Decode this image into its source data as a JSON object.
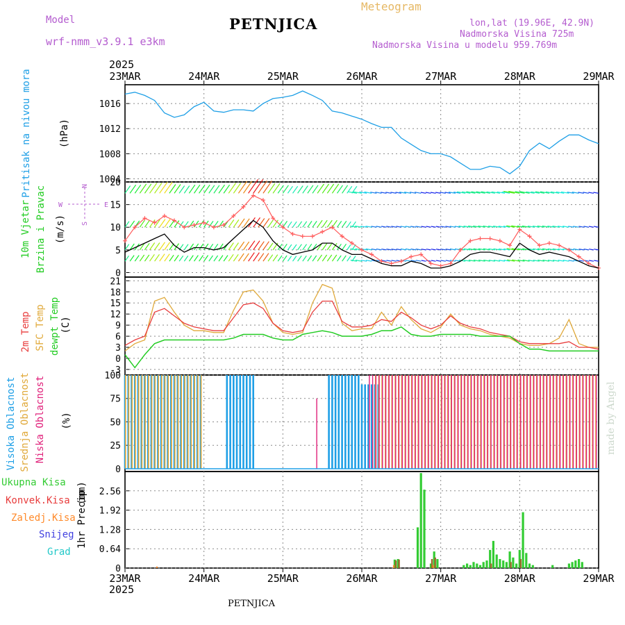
{
  "header": {
    "model_label": "Model",
    "model_name": "wrf-nmm_v3.9.1  e3km",
    "title": "PETNJICA",
    "meteogram": "Meteogram",
    "lonlat": "lon,lat (19.96E, 42.9N)",
    "altitude": "Nadmorska Visina 725m",
    "model_altitude": "Nadmorska Visina u modelu 959.769m",
    "footer": "PETNJICA",
    "credit": "made by Angel",
    "year": "2025"
  },
  "colors": {
    "pressure": "#1e9fe6",
    "wind_speed": "#000000",
    "gust": "#ff5a5a",
    "temp2m": "#e83c3c",
    "sfc_temp": "#e0a93a",
    "dewpt": "#22cc22",
    "high_cloud": "#1e9fe6",
    "mid_cloud": "#e0a93a",
    "low_cloud": "#e0207a",
    "total_precip": "#33cc33",
    "conv_precip": "#e83c3c",
    "frozen_precip": "#ff8a2a",
    "snow": "#4040e0",
    "hail": "#22c8c8",
    "header_purple": "#b45ccf",
    "header_gold": "#e6b864"
  },
  "chart_data": [
    {
      "type": "line",
      "name": "pressure",
      "x_ticks": [
        "23MAR",
        "24MAR",
        "25MAR",
        "26MAR",
        "27MAR",
        "28MAR",
        "29MAR"
      ],
      "ylabel_1": "Pritisak na nivou mora",
      "ylabel_2": "(hPa)",
      "y_tick_labels": [
        "1004",
        "1008",
        "1012",
        "1016"
      ],
      "ylim": [
        1003.5,
        1019
      ],
      "x_hours": [
        0,
        3,
        6,
        9,
        12,
        15,
        18,
        21,
        24,
        27,
        30,
        33,
        36,
        39,
        42,
        45,
        48,
        51,
        54,
        57,
        60,
        63,
        66,
        69,
        72,
        75,
        78,
        81,
        84,
        87,
        90,
        93,
        96,
        99,
        102,
        105,
        108,
        111,
        114,
        117,
        120,
        123,
        126,
        129,
        132,
        135,
        138,
        141,
        144
      ],
      "values": [
        1017.5,
        1017.8,
        1017.3,
        1016.5,
        1014.5,
        1013.8,
        1014.2,
        1015.5,
        1016.2,
        1014.8,
        1014.6,
        1015.0,
        1015.0,
        1014.8,
        1016.0,
        1016.8,
        1017.0,
        1017.3,
        1018.0,
        1017.3,
        1016.5,
        1014.8,
        1014.5,
        1014.0,
        1013.5,
        1012.8,
        1012.2,
        1012.2,
        1010.5,
        1009.5,
        1008.5,
        1008.0,
        1008.0,
        1007.5,
        1006.5,
        1005.5,
        1005.5,
        1006.0,
        1005.8,
        1004.8,
        1006.0,
        1008.5,
        1009.7,
        1008.8,
        1010.0,
        1011.0,
        1011.0,
        1010.2,
        1009.6
      ]
    },
    {
      "type": "line",
      "name": "wind",
      "ylabel_1": "10m Vjetar",
      "ylabel_2": "Brzina i Pravac",
      "ylabel_3": "(m/s)",
      "compass": {
        "north": "N",
        "south": "S",
        "east": "E",
        "west": "W"
      },
      "y_tick_labels": [
        "0",
        "5",
        "10",
        "15",
        "20"
      ],
      "ylim": [
        -1,
        20
      ],
      "x_hours": [
        0,
        3,
        6,
        9,
        12,
        15,
        18,
        21,
        24,
        27,
        30,
        33,
        36,
        39,
        42,
        45,
        48,
        51,
        54,
        57,
        60,
        63,
        66,
        69,
        72,
        75,
        78,
        81,
        84,
        87,
        90,
        93,
        96,
        99,
        102,
        105,
        108,
        111,
        114,
        117,
        120,
        123,
        126,
        129,
        132,
        135,
        138,
        141,
        144
      ],
      "speed": [
        4.5,
        5.5,
        6.5,
        7.5,
        8.5,
        6.0,
        4.5,
        5.5,
        5.5,
        5.0,
        5.5,
        7.5,
        9.5,
        11.5,
        10.0,
        7.0,
        5.0,
        4.0,
        4.5,
        5.0,
        6.5,
        6.5,
        5.0,
        4.0,
        4.0,
        3.0,
        2.0,
        1.5,
        1.5,
        2.5,
        2.0,
        1.0,
        1.0,
        1.5,
        2.5,
        4.0,
        4.5,
        4.5,
        4.0,
        3.5,
        6.5,
        5.0,
        4.0,
        4.5,
        4.0,
        3.5,
        2.5,
        1.5,
        1.0
      ],
      "gust": [
        7.0,
        10.0,
        12.0,
        11.0,
        12.5,
        11.5,
        10.0,
        10.5,
        11.0,
        10.0,
        10.5,
        12.5,
        14.5,
        17.0,
        16.0,
        12.0,
        10.0,
        8.5,
        8.0,
        8.0,
        9.0,
        10.0,
        8.0,
        6.5,
        5.0,
        4.0,
        2.5,
        2.0,
        2.5,
        3.5,
        4.0,
        2.0,
        1.5,
        2.0,
        5.0,
        7.0,
        7.5,
        7.5,
        7.0,
        6.0,
        9.5,
        8.0,
        6.0,
        6.5,
        6.0,
        5.0,
        3.5,
        2.0,
        1.0
      ]
    },
    {
      "type": "line",
      "name": "temperature",
      "ylabel_1": "2m Temp",
      "ylabel_2": "SFC Temp",
      "ylabel_3": "dewpt Temp",
      "ylabel_4": "(C)",
      "y_tick_labels": [
        "-3",
        "0",
        "3",
        "6",
        "9",
        "12",
        "15",
        "18",
        "21"
      ],
      "ylim": [
        -4.5,
        22
      ],
      "x_hours": [
        0,
        3,
        6,
        9,
        12,
        15,
        18,
        21,
        24,
        27,
        30,
        33,
        36,
        39,
        42,
        45,
        48,
        51,
        54,
        57,
        60,
        63,
        66,
        69,
        72,
        75,
        78,
        81,
        84,
        87,
        90,
        93,
        96,
        99,
        102,
        105,
        108,
        111,
        114,
        117,
        120,
        123,
        126,
        129,
        132,
        135,
        138,
        141,
        144
      ],
      "temp2m": [
        3.5,
        5.0,
        6.0,
        12.5,
        13.5,
        11.5,
        9.5,
        8.5,
        8.0,
        7.5,
        7.5,
        11.0,
        14.5,
        15.0,
        13.5,
        9.5,
        7.5,
        7.0,
        7.5,
        12.5,
        15.5,
        15.5,
        10.0,
        8.5,
        8.5,
        9.0,
        10.5,
        10.0,
        12.5,
        11.0,
        9.0,
        8.0,
        9.0,
        11.5,
        9.5,
        8.5,
        8.0,
        7.0,
        6.5,
        6.0,
        4.5,
        4.0,
        4.0,
        4.0,
        4.0,
        4.5,
        3.0,
        3.0,
        2.5
      ],
      "sfc_temp": [
        2.0,
        4.0,
        5.0,
        15.5,
        16.5,
        12.5,
        9.0,
        7.5,
        7.5,
        7.0,
        7.0,
        13.0,
        18.0,
        18.5,
        15.5,
        9.5,
        7.0,
        6.5,
        7.0,
        15.0,
        20.0,
        19.0,
        9.5,
        7.5,
        8.0,
        8.0,
        12.5,
        9.0,
        14.0,
        10.5,
        8.0,
        7.0,
        8.5,
        12.0,
        9.0,
        8.0,
        7.5,
        6.5,
        6.0,
        5.5,
        4.0,
        3.5,
        3.5,
        4.0,
        5.5,
        10.5,
        4.0,
        3.0,
        3.0
      ],
      "dewpt": [
        1.0,
        -2.5,
        1.0,
        4.0,
        5.0,
        5.0,
        5.0,
        5.0,
        5.0,
        5.0,
        5.0,
        5.5,
        6.5,
        6.5,
        6.5,
        5.5,
        5.0,
        5.0,
        6.5,
        7.0,
        7.5,
        7.0,
        6.0,
        6.0,
        6.0,
        6.5,
        7.5,
        7.5,
        8.5,
        6.5,
        6.0,
        6.0,
        6.5,
        6.5,
        6.5,
        6.5,
        6.0,
        6.0,
        6.0,
        6.0,
        4.0,
        2.5,
        2.5,
        2.0,
        2.0,
        2.0,
        2.0,
        2.0,
        2.0
      ]
    },
    {
      "type": "bar",
      "name": "cloud_cover",
      "ylabel_1": "Visoka Oblacnost",
      "ylabel_2": "Srednja Oblacnost",
      "ylabel_3": "Niska Oblacnost",
      "ylabel_4": "(%)",
      "y_tick_labels": [
        "0",
        "25",
        "50",
        "75",
        "100"
      ],
      "ylim": [
        -3,
        100
      ],
      "series": [
        {
          "name": "high",
          "segments": [
            [
              0,
              24,
              100
            ],
            [
              31,
              40,
              100
            ],
            [
              62,
              72,
              100
            ],
            [
              72,
              78,
              90
            ]
          ]
        },
        {
          "name": "mid",
          "segments": [
            [
              0,
              24,
              100
            ],
            [
              76,
              144,
              100
            ]
          ]
        },
        {
          "name": "low",
          "segments": [
            [
              58,
              59,
              75
            ],
            [
              74,
              144,
              100
            ]
          ]
        }
      ]
    },
    {
      "type": "bar",
      "name": "precipitation",
      "ylabel_1": "1hr Precip",
      "ylabel_2": "(mm)",
      "legend": [
        "Ukupna Kisa",
        "Konvek.Kisa",
        "Zaledj.Kisa",
        "Snijeg",
        "Grad"
      ],
      "y_tick_labels": [
        "0",
        "0.64",
        "1.28",
        "1.92",
        "2.56"
      ],
      "ylim": [
        0,
        3.2
      ],
      "total": [
        [
          82,
          0.28
        ],
        [
          83,
          0.3
        ],
        [
          89,
          1.35
        ],
        [
          90,
          3.15
        ],
        [
          91,
          2.6
        ],
        [
          93,
          0.15
        ],
        [
          94,
          0.55
        ],
        [
          95,
          0.3
        ],
        [
          103,
          0.1
        ],
        [
          104,
          0.15
        ],
        [
          105,
          0.1
        ],
        [
          106,
          0.2
        ],
        [
          107,
          0.15
        ],
        [
          108,
          0.1
        ],
        [
          109,
          0.2
        ],
        [
          110,
          0.25
        ],
        [
          111,
          0.6
        ],
        [
          112,
          0.9
        ],
        [
          113,
          0.45
        ],
        [
          114,
          0.3
        ],
        [
          115,
          0.25
        ],
        [
          116,
          0.2
        ],
        [
          117,
          0.55
        ],
        [
          118,
          0.35
        ],
        [
          119,
          0.15
        ],
        [
          120,
          0.6
        ],
        [
          121,
          1.85
        ],
        [
          122,
          0.5
        ],
        [
          123,
          0.15
        ],
        [
          124,
          0.1
        ],
        [
          130,
          0.1
        ],
        [
          135,
          0.15
        ],
        [
          136,
          0.2
        ],
        [
          137,
          0.25
        ],
        [
          138,
          0.3
        ],
        [
          139,
          0.2
        ]
      ],
      "convective": [
        [
          82,
          0.25
        ],
        [
          83,
          0.28
        ],
        [
          93,
          0.3
        ],
        [
          94,
          0.35
        ],
        [
          111,
          0.15
        ],
        [
          117,
          0.2
        ],
        [
          120,
          0.3
        ]
      ],
      "frozen": [
        [
          10,
          0.05
        ],
        [
          82,
          0.1
        ],
        [
          94,
          0.1
        ]
      ]
    }
  ]
}
